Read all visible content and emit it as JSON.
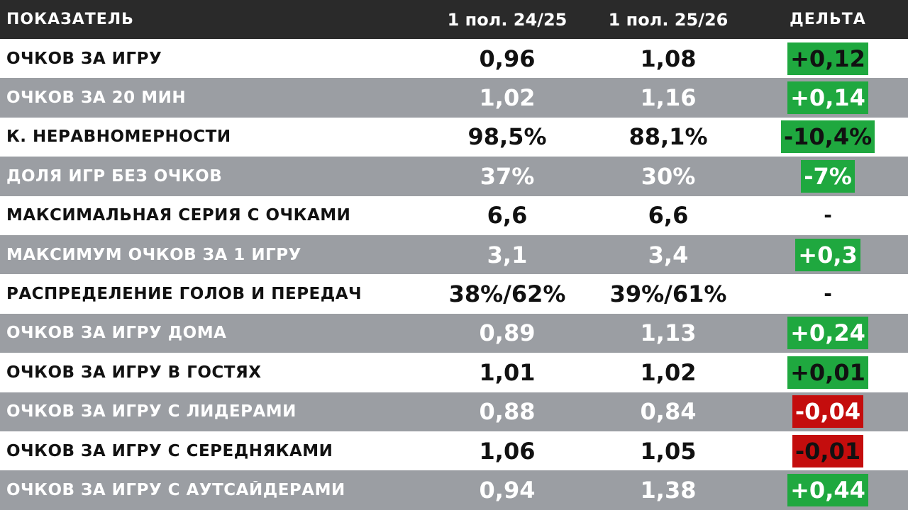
{
  "header": {
    "metric": "ПОКАЗАТЕЛЬ",
    "col1": "1 пол. 24/25",
    "col2": "1 пол. 25/26",
    "delta": "ДЕЛЬТА"
  },
  "colors": {
    "header_bg": "#2a2a2a",
    "row_dark_bg": "#9b9ea3",
    "positive": "#1fa83f",
    "negative": "#c40d0d"
  },
  "rows": [
    {
      "label": "ОЧКОВ ЗА ИГРУ",
      "v1": "0,96",
      "v2": "1,08",
      "delta": "+0,12",
      "trend": "up"
    },
    {
      "label": "ОЧКОВ ЗА 20 МИН",
      "v1": "1,02",
      "v2": "1,16",
      "delta": "+0,14",
      "trend": "up"
    },
    {
      "label": "К. НЕРАВНОМЕРНОСТИ",
      "v1": "98,5%",
      "v2": "88,1%",
      "delta": "-10,4%",
      "trend": "up"
    },
    {
      "label": "ДОЛЯ ИГР БЕЗ ОЧКОВ",
      "v1": "37%",
      "v2": "30%",
      "delta": "-7%",
      "trend": "up"
    },
    {
      "label": "МАКСИМАЛЬНАЯ СЕРИЯ С ОЧКАМИ",
      "v1": "6,6",
      "v2": "6,6",
      "delta": "-",
      "trend": "none"
    },
    {
      "label": "МАКСИМУМ ОЧКОВ ЗА 1 ИГРУ",
      "v1": "3,1",
      "v2": "3,4",
      "delta": "+0,3",
      "trend": "up"
    },
    {
      "label": "РАСПРЕДЕЛЕНИЕ ГОЛОВ И ПЕРЕДАЧ",
      "v1": "38%/62%",
      "v2": "39%/61%",
      "delta": "-",
      "trend": "none"
    },
    {
      "label": "ОЧКОВ ЗА ИГРУ ДОМА",
      "v1": "0,89",
      "v2": "1,13",
      "delta": "+0,24",
      "trend": "up"
    },
    {
      "label": "ОЧКОВ ЗА ИГРУ В ГОСТЯХ",
      "v1": "1,01",
      "v2": "1,02",
      "delta": "+0,01",
      "trend": "up"
    },
    {
      "label": "ОЧКОВ ЗА ИГРУ С ЛИДЕРАМИ",
      "v1": "0,88",
      "v2": "0,84",
      "delta": "-0,04",
      "trend": "down"
    },
    {
      "label": "ОЧКОВ ЗА ИГРУ С СЕРЕДНЯКАМИ",
      "v1": "1,06",
      "v2": "1,05",
      "delta": "-0,01",
      "trend": "down"
    },
    {
      "label": "ОЧКОВ ЗА ИГРУ С АУТСАЙДЕРАМИ",
      "v1": "0,94",
      "v2": "1,38",
      "delta": "+0,44",
      "trend": "up"
    }
  ]
}
